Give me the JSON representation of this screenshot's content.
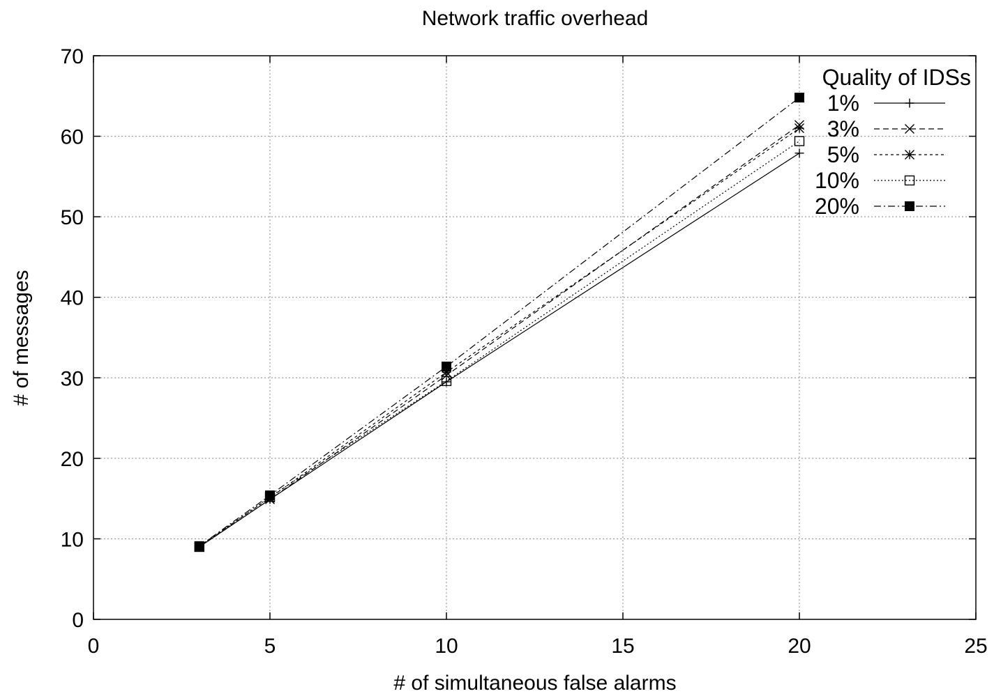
{
  "chart_data": {
    "type": "line",
    "title": "Network traffic overhead",
    "xlabel": "# of simultaneous false alarms",
    "ylabel": "# of messages",
    "xlim": [
      0,
      25
    ],
    "ylim": [
      0,
      70
    ],
    "xticks": [
      0,
      5,
      10,
      15,
      20,
      25
    ],
    "yticks": [
      0,
      10,
      20,
      30,
      40,
      50,
      60,
      70
    ],
    "grid": true,
    "legend": {
      "title": "Quality of IDSs",
      "placement": "top-right"
    },
    "x": [
      3,
      5,
      10,
      20
    ],
    "series": [
      {
        "name": "1%",
        "values": [
          9.0,
          14.9,
          29.5,
          57.9
        ],
        "marker": "plus",
        "dash": "solid"
      },
      {
        "name": "3%",
        "values": [
          9.0,
          14.9,
          30.3,
          61.4
        ],
        "marker": "cross",
        "dash": "dashed"
      },
      {
        "name": "5%",
        "values": [
          9.1,
          15.1,
          30.7,
          61.0
        ],
        "marker": "star",
        "dash": "short-dash"
      },
      {
        "name": "10%",
        "values": [
          9.0,
          15.2,
          29.6,
          59.4
        ],
        "marker": "open-square",
        "dash": "dotted"
      },
      {
        "name": "20%",
        "values": [
          9.1,
          15.4,
          31.4,
          64.8
        ],
        "marker": "filled-square",
        "dash": "dash-dot"
      }
    ]
  }
}
